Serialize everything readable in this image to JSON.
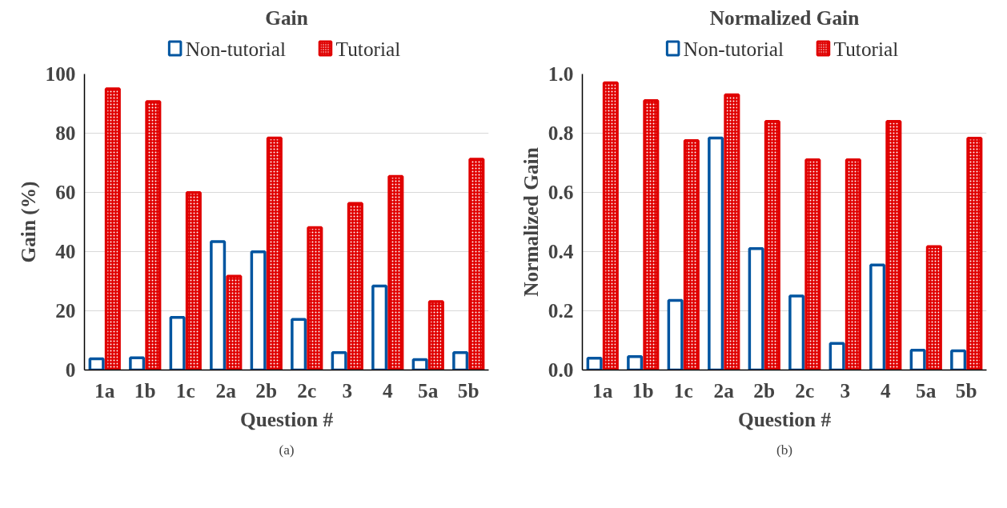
{
  "chart_data": [
    {
      "type": "bar",
      "title": "Gain",
      "xlabel": "Question #",
      "ylabel": "Gain (%)",
      "categories": [
        "1a",
        "1b",
        "1c",
        "2a",
        "2b",
        "2c",
        "3",
        "4",
        "5a",
        "5b"
      ],
      "series": [
        {
          "name": "Non-tutorial",
          "color": "#0055a0",
          "values": [
            3.8,
            4.1,
            17.8,
            43.4,
            39.9,
            17.1,
            5.9,
            28.4,
            3.5,
            5.9
          ]
        },
        {
          "name": "Tutorial",
          "color": "#e00000",
          "values": [
            95,
            90.7,
            59.9,
            31.7,
            78.4,
            48.1,
            56.3,
            65.4,
            23.1,
            71.2
          ]
        }
      ],
      "ylim": [
        0,
        100
      ],
      "yticks": [
        0,
        20,
        40,
        60,
        80,
        100
      ],
      "grid": "y",
      "legend": "top",
      "annotations": [
        "(a)"
      ]
    },
    {
      "type": "bar",
      "title": "Normalized Gain",
      "xlabel": "Question #",
      "ylabel": "Normalized Gain",
      "categories": [
        "1a",
        "1b",
        "1c",
        "2a",
        "2b",
        "2c",
        "3",
        "4",
        "5a",
        "5b"
      ],
      "series": [
        {
          "name": "Non-tutorial",
          "color": "#0055a0",
          "values": [
            0.04,
            0.045,
            0.235,
            0.784,
            0.41,
            0.25,
            0.09,
            0.355,
            0.067,
            0.065
          ]
        },
        {
          "name": "Tutorial",
          "color": "#e00000",
          "values": [
            0.97,
            0.91,
            0.775,
            0.93,
            0.84,
            0.71,
            0.71,
            0.84,
            0.417,
            0.783
          ]
        }
      ],
      "ylim": [
        0,
        1.0
      ],
      "yticks": [
        {
          "value": 0,
          "label": "0.0"
        },
        {
          "value": 0.2,
          "label": "0.2"
        },
        {
          "value": 0.4,
          "label": "0.4"
        },
        {
          "value": 0.6,
          "label": "0.6"
        },
        {
          "value": 0.8,
          "label": "0.8"
        },
        {
          "value": 1.0,
          "label": "1.0"
        }
      ],
      "grid": "y",
      "legend": "top",
      "annotations": [
        "(b)"
      ]
    }
  ]
}
